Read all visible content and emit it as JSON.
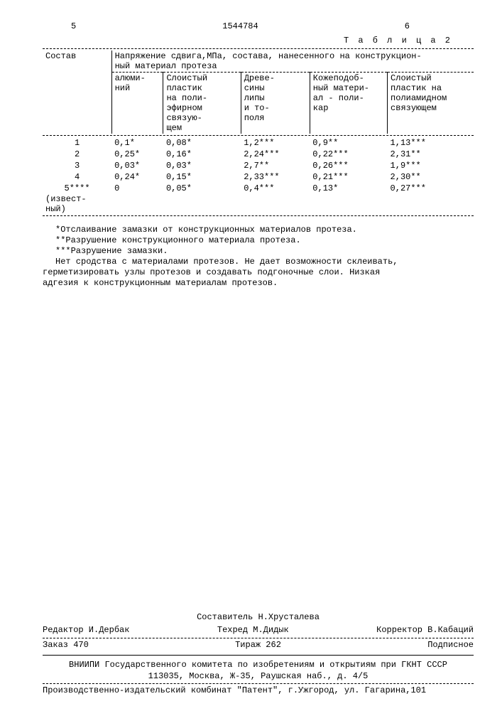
{
  "header": {
    "left_page": "5",
    "doc_number": "1544784",
    "right_page": "6",
    "table_label": "Т а б л и ц а  2"
  },
  "table": {
    "col1": "Состав",
    "span_header_line1": "Напряжение сдвига,МПа, состава, нанесенного на конструкцион-",
    "span_header_line2": "ный материал  протеза",
    "subheads": {
      "c1": "алюми-\nний",
      "c2": "Слоистый\nпластик\nна поли-\nэфирном\nсвязую-\nщем",
      "c3": "Древе-\nсины\nлипы\nи то-\nполя",
      "c4": "Кожеподоб-\nный матери-\nал - поли-\nкар",
      "c5": "Слоистый\nпластик на\nполиамидном\nсвязующем"
    },
    "rows": [
      {
        "n": "1",
        "a": "0,1*",
        "b": "0,08*",
        "c": "1,2***",
        "d": "0,9**",
        "e": "1,13***"
      },
      {
        "n": "2",
        "a": "0,25*",
        "b": "0,16*",
        "c": "2,24***",
        "d": "0,22***",
        "e": "2,31**"
      },
      {
        "n": "3",
        "a": "0,03*",
        "b": "0,03*",
        "c": "2,7**",
        "d": "0,26***",
        "e": "1,9***"
      },
      {
        "n": "4",
        "a": "0,24*",
        "b": "0,15*",
        "c": "2,33***",
        "d": "0,21***",
        "e": "2,30**"
      },
      {
        "n": "5****",
        "a": "0",
        "b": "0,05*",
        "c": "0,4***",
        "d": "0,13*",
        "e": "0,27***"
      }
    ],
    "tail": "(извест-\nный)"
  },
  "footnotes": {
    "f1": "*Отслаивание замазки от конструкционных материалов протеза.",
    "f2": "**Разрушение конструкционного материала протеза.",
    "f3": "***Разрушение замазки.",
    "f4": "Нет сродства с материалами протезов. Не дает возможности склеивать,",
    "f5": "герметизировать узлы протезов и создавать подгоночные слои. Низкая",
    "f6": "адгезия к конструкционным материалам протезов."
  },
  "credits": {
    "compiler": "Составитель Н.Хрусталева",
    "editor": "Редактор И.Дербак",
    "techred": "Техред М.Дидык",
    "corrector": "Корректор В.Кабаций",
    "order": "Заказ 470",
    "tirazh": "Тираж 262",
    "podp": "Подписное",
    "org1": "ВНИИПИ Государственного комитета по изобретениям и открытиям при ГКНТ СССР",
    "org2": "113035, Москва, Ж-35, Раушская наб., д. 4/5",
    "prod": "Производственно-издательский комбинат \"Патент\", г.Ужгород, ул. Гагарина,101"
  }
}
